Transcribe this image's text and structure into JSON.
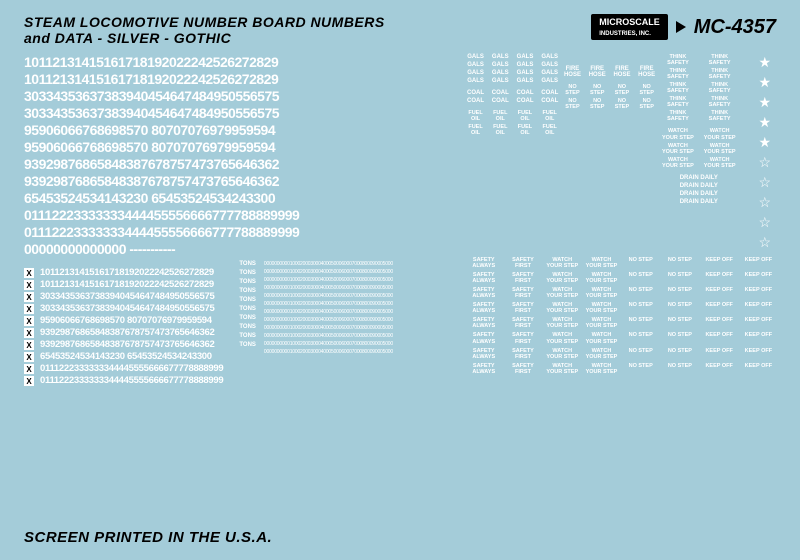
{
  "title_l1": "STEAM LOCOMOTIVE NUMBER BOARD NUMBERS",
  "title_l2": "and DATA - SILVER - GOTHIC",
  "brand": "MICROSCALE",
  "brand2": "INDUSTRIES, INC.",
  "part": "MC-4357",
  "big_rows": [
    "10112131415161718192022242526272829",
    "10112131415161718192022242526272829",
    "30334353637383940454647484950556575",
    "30334353637383940454647484950556575",
    "95906066768698570 80707076979959594",
    "95906066768698570 80707076979959594",
    "93929876865848387678757473765646362",
    "93929876865848387678757473765646362",
    "65453524534143230 65453524534243300",
    "01112223333333444455556666777788889999",
    "01112223333333444455556666777788889999",
    "00000000000000 -----------"
  ],
  "small_rows": [
    "10112131415161718192022242526272829",
    "10112131415161718192022242526272829",
    "30334353637383940454647484950556575",
    "30334353637383940454647484950556575",
    "95906066768698570 80707076979959594",
    "93929876865848387678757473765646362",
    "93929876865848387678757473765646362",
    "65453524534143230 65453524534243300",
    "0111222333333344445555666677778888999",
    "0111222333333344445555666677778888999"
  ],
  "tons": "TONS",
  "gals": "GALS",
  "coal": "COAL",
  "fuel_oil": "FUEL\nOIL",
  "think_safety": "THINK\nSAFETY",
  "watch_step": "WATCH\nYOUR\nSTEP",
  "fire_hose": "FIRE HOSE",
  "no_step": "NO\nSTEP",
  "keep_off": "KEEP\nOFF",
  "drain_daily": "DRAIN DAILY",
  "safety_first": "SAFETY\nFIRST",
  "safety_always": "SAFETY\nALWAYS",
  "micro": "00000000001000200030004000500060007000800090005000",
  "footer": "SCREEN PRINTED IN THE U.S.A."
}
